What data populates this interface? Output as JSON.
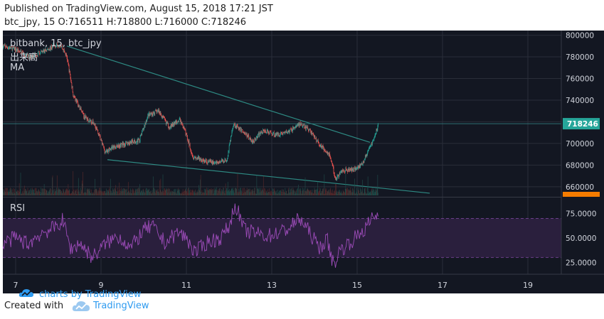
{
  "header": {
    "published": "Published on TradingView.com, August 15, 2018 17:21 JST",
    "symbol_line": "btc_jpy, 15 O:716511 H:718800 L:716000 C:718246"
  },
  "legend": {
    "series_title": "bitbank, 15, btc_jpy",
    "volume_label": "出来高",
    "ma_label": "MA",
    "rsi_label": "RSI"
  },
  "watermark": {
    "text": "charts by TradingView",
    "icon": "tradingview-cloud-icon"
  },
  "footer": {
    "created_with": "Created with",
    "brand": "TradingView",
    "icon": "tradingview-cloud-icon"
  },
  "colors": {
    "background": "#131722",
    "grid": "#2a2e39",
    "axis_text": "#d1d4dc",
    "up_candle": "#26a69a",
    "down_candle": "#ef5350",
    "trendline": "#2e8b84",
    "price_badge": "#26a69a",
    "lowest_badge": "#f57c00",
    "rsi_line": "#9c4bb8",
    "rsi_band": "#2a1f3d",
    "rsi_band_edge": "#6b3f8a",
    "brand": "#2e9bf0"
  },
  "chart_data": [
    {
      "type": "candlestick",
      "title": "bitbank, 15, btc_jpy",
      "x_tick_labels": [
        "7",
        "9",
        "11",
        "13",
        "15",
        "17",
        "19"
      ],
      "y_tick_labels": [
        "660000",
        "680000",
        "700000",
        "720000",
        "740000",
        "760000",
        "780000",
        "800000"
      ],
      "ylim": [
        652000,
        803000
      ],
      "grid": true,
      "last_price_label": "718246",
      "ohlc_last": {
        "open": 716511,
        "high": 718800,
        "low": 716000,
        "close": 718246
      },
      "close_path": {
        "day": [
          6.7,
          7.0,
          7.3,
          7.6,
          7.9,
          8.05,
          8.2,
          8.35,
          8.6,
          8.85,
          9.1,
          9.3,
          9.6,
          9.9,
          10.1,
          10.35,
          10.6,
          10.85,
          11.0,
          11.15,
          11.4,
          11.7,
          11.95,
          12.1,
          12.3,
          12.55,
          12.8,
          13.1,
          13.4,
          13.65,
          13.9,
          14.1,
          14.35,
          14.5,
          14.65,
          14.9,
          15.1,
          15.25,
          15.4,
          15.5
        ],
        "price": [
          790000,
          787000,
          780000,
          784000,
          790000,
          792000,
          780000,
          745000,
          725000,
          718000,
          692000,
          697000,
          700000,
          703000,
          726000,
          730000,
          715000,
          722000,
          708000,
          688000,
          684000,
          682000,
          685000,
          718000,
          712000,
          702000,
          712000,
          708000,
          711000,
          718000,
          712000,
          700000,
          690000,
          667000,
          675000,
          676000,
          680000,
          692000,
          705000,
          718246
        ]
      },
      "trendlines": [
        {
          "from": {
            "day": 8.2,
            "price": 790000
          },
          "to": {
            "day": 15.3,
            "price": 701000
          }
        },
        {
          "from": {
            "day": 9.15,
            "price": 685000
          },
          "to": {
            "day": 16.7,
            "price": 654000
          }
        }
      ]
    },
    {
      "type": "line",
      "title": "RSI",
      "y_tick_labels": [
        "25.0000",
        "50.0000",
        "75.0000"
      ],
      "ylim": [
        15,
        90
      ],
      "band": [
        30,
        70
      ],
      "x": [
        6.7,
        7.0,
        7.3,
        7.6,
        7.9,
        8.1,
        8.3,
        8.5,
        8.8,
        9.1,
        9.4,
        9.7,
        10.0,
        10.2,
        10.5,
        10.8,
        11.0,
        11.2,
        11.5,
        11.8,
        12.0,
        12.15,
        12.35,
        12.6,
        12.9,
        13.2,
        13.4,
        13.65,
        13.9,
        14.1,
        14.3,
        14.45,
        14.6,
        14.8,
        15.0,
        15.2,
        15.35,
        15.5
      ],
      "values": [
        45,
        50,
        44,
        55,
        60,
        68,
        38,
        45,
        30,
        44,
        52,
        40,
        58,
        62,
        45,
        56,
        50,
        35,
        46,
        50,
        62,
        85,
        58,
        55,
        52,
        56,
        60,
        70,
        55,
        40,
        48,
        22,
        38,
        44,
        52,
        60,
        70,
        75
      ]
    }
  ]
}
